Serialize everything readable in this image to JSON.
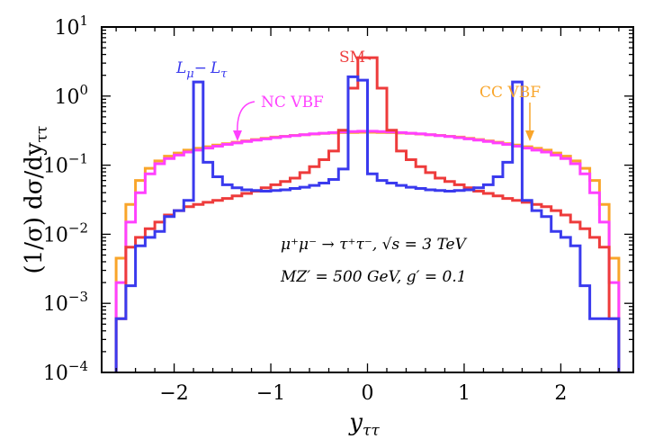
{
  "chart_data": {
    "type": "line",
    "subtype": "step-histogram",
    "xlabel": "yττ",
    "ylabel": "(1/σ) dσ/dyττ",
    "xlim": [
      -2.75,
      2.75
    ],
    "ylim": [
      0.0001,
      10
    ],
    "yscale": "log",
    "xticks": [
      -2,
      -1,
      0,
      1,
      2
    ],
    "xtick_labels": [
      "−2",
      "−1",
      "0",
      "1",
      "2"
    ],
    "yticks": [
      0.0001,
      0.001,
      0.01,
      0.1,
      1,
      10
    ],
    "ytick_labels": [
      {
        "base": "10",
        "exp": "−4"
      },
      {
        "base": "10",
        "exp": "−3"
      },
      {
        "base": "10",
        "exp": "−2"
      },
      {
        "base": "10",
        "exp": "−1"
      },
      {
        "base": "10",
        "exp": "0"
      },
      {
        "base": "10",
        "exp": "1"
      }
    ],
    "bin_width": 0.1,
    "bin_edges_start": -2.6,
    "series": [
      {
        "name": "CC VBF",
        "color": "#F9A52A",
        "values": [
          0.0045,
          0.027,
          0.06,
          0.09,
          0.115,
          0.135,
          0.15,
          0.165,
          0.175,
          0.185,
          0.195,
          0.205,
          0.215,
          0.225,
          0.235,
          0.245,
          0.255,
          0.262,
          0.27,
          0.276,
          0.282,
          0.288,
          0.292,
          0.296,
          0.298,
          0.3,
          0.3,
          0.298,
          0.296,
          0.292,
          0.288,
          0.282,
          0.276,
          0.27,
          0.262,
          0.255,
          0.245,
          0.235,
          0.225,
          0.215,
          0.205,
          0.195,
          0.185,
          0.175,
          0.165,
          0.15,
          0.135,
          0.115,
          0.09,
          0.06,
          0.027,
          0.0045
        ]
      },
      {
        "name": "NC VBF",
        "color": "#FF40FF",
        "values": [
          0.002,
          0.015,
          0.04,
          0.075,
          0.105,
          0.125,
          0.14,
          0.155,
          0.165,
          0.177,
          0.188,
          0.2,
          0.21,
          0.22,
          0.23,
          0.24,
          0.25,
          0.26,
          0.268,
          0.276,
          0.284,
          0.29,
          0.296,
          0.302,
          0.306,
          0.31,
          0.31,
          0.306,
          0.302,
          0.296,
          0.29,
          0.284,
          0.276,
          0.268,
          0.26,
          0.25,
          0.24,
          0.23,
          0.22,
          0.21,
          0.2,
          0.188,
          0.177,
          0.165,
          0.155,
          0.14,
          0.125,
          0.105,
          0.075,
          0.04,
          0.015,
          0.002
        ]
      },
      {
        "name": "SM",
        "color": "#EE3B3B",
        "values": [
          0.0006,
          0.0065,
          0.009,
          0.012,
          0.015,
          0.019,
          0.022,
          0.025,
          0.027,
          0.029,
          0.031,
          0.033,
          0.036,
          0.039,
          0.042,
          0.047,
          0.052,
          0.058,
          0.065,
          0.078,
          0.095,
          0.12,
          0.16,
          0.32,
          1.3,
          3.6,
          3.6,
          1.3,
          0.32,
          0.16,
          0.12,
          0.095,
          0.078,
          0.065,
          0.058,
          0.052,
          0.047,
          0.042,
          0.039,
          0.036,
          0.033,
          0.031,
          0.029,
          0.027,
          0.025,
          0.022,
          0.019,
          0.015,
          0.012,
          0.009,
          0.0065,
          0.0006
        ]
      },
      {
        "name": "Lμ − Lτ",
        "color": "#3A3AEE",
        "values": [
          0.0006,
          0.0018,
          0.0068,
          0.009,
          0.011,
          0.018,
          0.022,
          0.031,
          1.6,
          0.11,
          0.068,
          0.052,
          0.047,
          0.044,
          0.043,
          0.042,
          0.043,
          0.044,
          0.046,
          0.048,
          0.051,
          0.055,
          0.062,
          0.088,
          1.9,
          1.7,
          0.075,
          0.06,
          0.055,
          0.051,
          0.048,
          0.046,
          0.044,
          0.043,
          0.042,
          0.043,
          0.044,
          0.047,
          0.052,
          0.068,
          0.11,
          1.6,
          0.031,
          0.022,
          0.018,
          0.011,
          0.009,
          0.0068,
          0.0018,
          0.0006,
          0.0006,
          0.0006
        ]
      }
    ],
    "annotations": [
      {
        "text": "SM",
        "color": "#EE3B3B"
      },
      {
        "text": "NC VBF",
        "color": "#FF40FF"
      },
      {
        "text": "CC VBF",
        "color": "#F9A52A"
      }
    ],
    "legend_label_L": "L",
    "legend_label_mu": "μ",
    "legend_label_minus": "−",
    "legend_label_tau": "τ",
    "process_line1": "μ⁺μ⁻ → τ⁺τ⁻, √s = 3 TeV",
    "process_line2": "MZ′ = 500 GeV, g′ = 0.1"
  }
}
